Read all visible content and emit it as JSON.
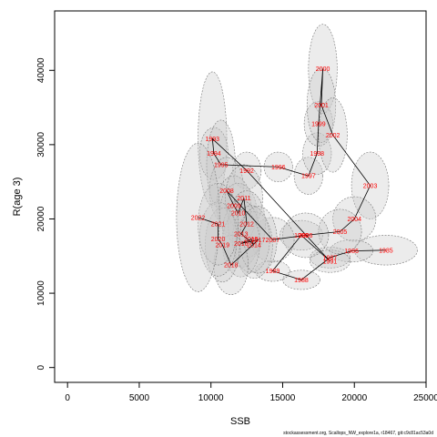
{
  "chart_data": {
    "type": "scatter",
    "xlabel": "SSB",
    "ylabel": "R(age 3)",
    "xlim": [
      -900,
      25000
    ],
    "ylim": [
      -2000,
      48000
    ],
    "x_ticks": [
      0,
      5000,
      10000,
      15000,
      20000,
      25000
    ],
    "y_ticks": [
      0,
      10000,
      20000,
      30000,
      40000
    ],
    "x_tick_labels": [
      "0",
      "5000",
      "10000",
      "15000",
      "20000",
      "25000"
    ],
    "y_tick_labels": [
      "0",
      "10000",
      "20000",
      "30000",
      "40000"
    ],
    "point_color": "#ff0000",
    "line_color": "#000000",
    "ellipse_fill": "#c8c8c8",
    "grid": false,
    "caption": "stockassessment.org, Scallops_NW_explore1a, r18467, git:c9c81ac53a0d",
    "points": [
      {
        "year": "1985",
        "ssb": 22200,
        "rec": 15800,
        "sd_ssb": 2200,
        "sd_rec": 2000
      },
      {
        "year": "1986",
        "ssb": 19800,
        "rec": 15700,
        "sd_ssb": 1500,
        "sd_rec": 1500
      },
      {
        "year": "1987",
        "ssb": 18300,
        "rec": 14800,
        "sd_ssb": 1400,
        "sd_rec": 1400
      },
      {
        "year": "1988",
        "ssb": 16300,
        "rec": 11800,
        "sd_ssb": 1300,
        "sd_rec": 1300
      },
      {
        "year": "1989",
        "ssb": 14300,
        "rec": 13000,
        "sd_ssb": 1200,
        "sd_rec": 1400
      },
      {
        "year": "1990",
        "ssb": 16300,
        "rec": 17800,
        "sd_ssb": 1500,
        "sd_rec": 2000
      },
      {
        "year": "1991",
        "ssb": 18300,
        "rec": 14300,
        "sd_ssb": 1400,
        "sd_rec": 1500
      },
      {
        "year": "1992",
        "ssb": 12500,
        "rec": 26500,
        "sd_ssb": 1000,
        "sd_rec": 2500
      },
      {
        "year": "1993",
        "ssb": 10100,
        "rec": 30800,
        "sd_ssb": 1000,
        "sd_rec": 9000
      },
      {
        "year": "1994",
        "ssb": 10200,
        "rec": 28800,
        "sd_ssb": 1000,
        "sd_rec": 3500
      },
      {
        "year": "1995",
        "ssb": 10700,
        "rec": 27300,
        "sd_ssb": 1000,
        "sd_rec": 6000
      },
      {
        "year": "1996",
        "ssb": 14700,
        "rec": 27000,
        "sd_ssb": 1000,
        "sd_rec": 2000
      },
      {
        "year": "1997",
        "ssb": 16800,
        "rec": 25800,
        "sd_ssb": 1000,
        "sd_rec": 2500
      },
      {
        "year": "1998",
        "ssb": 17400,
        "rec": 28800,
        "sd_ssb": 1000,
        "sd_rec": 2800
      },
      {
        "year": "1999",
        "ssb": 17500,
        "rec": 32800,
        "sd_ssb": 1000,
        "sd_rec": 3000
      },
      {
        "year": "2000",
        "ssb": 17800,
        "rec": 40200,
        "sd_ssb": 1000,
        "sd_rec": 6000
      },
      {
        "year": "2001",
        "ssb": 17700,
        "rec": 35300,
        "sd_ssb": 1000,
        "sd_rec": 5000
      },
      {
        "year": "2002",
        "ssb": 18500,
        "rec": 31300,
        "sd_ssb": 1000,
        "sd_rec": 5000
      },
      {
        "year": "2003",
        "ssb": 21100,
        "rec": 24500,
        "sd_ssb": 1300,
        "sd_rec": 4500
      },
      {
        "year": "2004",
        "ssb": 20000,
        "rec": 20000,
        "sd_ssb": 1500,
        "sd_rec": 3000
      },
      {
        "year": "2005",
        "ssb": 19000,
        "rec": 18300,
        "sd_ssb": 1500,
        "sd_rec": 3000
      },
      {
        "year": "2006",
        "ssb": 16600,
        "rec": 17800,
        "sd_ssb": 1600,
        "sd_rec": 3000
      },
      {
        "year": "2007",
        "ssb": 14300,
        "rec": 17200,
        "sd_ssb": 1500,
        "sd_rec": 3000
      },
      {
        "year": "2008",
        "ssb": 11100,
        "rec": 23800,
        "sd_ssb": 1200,
        "sd_rec": 4500
      },
      {
        "year": "2009",
        "ssb": 11600,
        "rec": 21800,
        "sd_ssb": 1200,
        "sd_rec": 4000
      },
      {
        "year": "2010",
        "ssb": 11900,
        "rec": 20800,
        "sd_ssb": 1300,
        "sd_rec": 4000
      },
      {
        "year": "2011",
        "ssb": 12300,
        "rec": 22800,
        "sd_ssb": 1300,
        "sd_rec": 4500
      },
      {
        "year": "2012",
        "ssb": 12500,
        "rec": 19300,
        "sd_ssb": 1300,
        "sd_rec": 4500
      },
      {
        "year": "2013",
        "ssb": 12100,
        "rec": 18000,
        "sd_ssb": 1300,
        "sd_rec": 4500
      },
      {
        "year": "2014",
        "ssb": 13000,
        "rec": 16500,
        "sd_ssb": 1300,
        "sd_rec": 4500
      },
      {
        "year": "2015",
        "ssb": 12800,
        "rec": 17300,
        "sd_ssb": 1300,
        "sd_rec": 4500
      },
      {
        "year": "2016",
        "ssb": 12100,
        "rec": 16700,
        "sd_ssb": 1300,
        "sd_rec": 4500
      },
      {
        "year": "2017",
        "ssb": 13300,
        "rec": 17200,
        "sd_ssb": 1300,
        "sd_rec": 4500
      },
      {
        "year": "2018",
        "ssb": 11400,
        "rec": 13800,
        "sd_ssb": 1200,
        "sd_rec": 4000
      },
      {
        "year": "2019",
        "ssb": 10800,
        "rec": 16500,
        "sd_ssb": 1200,
        "sd_rec": 5000
      },
      {
        "year": "2020",
        "ssb": 10500,
        "rec": 17300,
        "sd_ssb": 1300,
        "sd_rec": 5000
      },
      {
        "year": "2021",
        "ssb": 10500,
        "rec": 19300,
        "sd_ssb": 1400,
        "sd_rec": 5500
      },
      {
        "year": "2022",
        "ssb": 9100,
        "rec": 20200,
        "sd_ssb": 1500,
        "sd_rec": 10000
      }
    ]
  }
}
